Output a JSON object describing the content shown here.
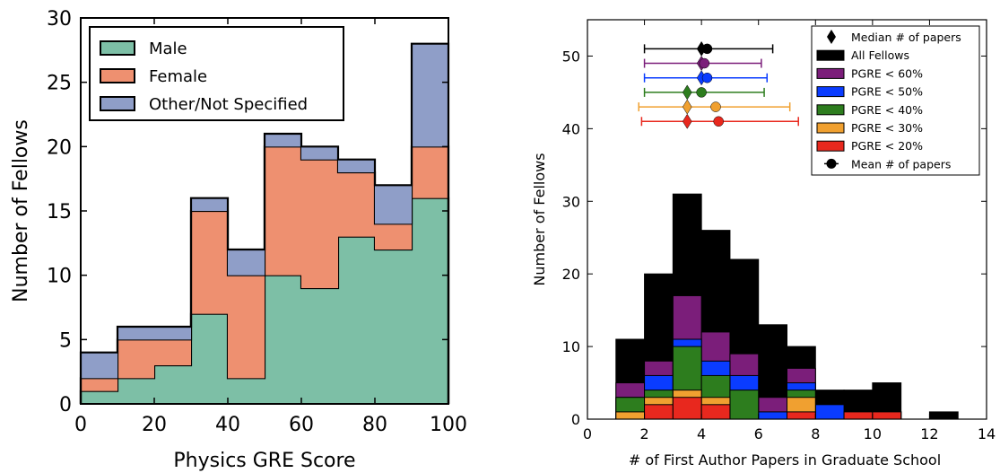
{
  "chart_data": [
    {
      "type": "histogram-stacked",
      "title": "",
      "xlabel": "Physics GRE Score",
      "ylabel": "Number of Fellows",
      "xlim": [
        0,
        100
      ],
      "ylim": [
        0,
        30
      ],
      "xticks": [
        0,
        20,
        40,
        60,
        80,
        100
      ],
      "yticks": [
        0,
        5,
        10,
        15,
        20,
        25,
        30
      ],
      "bin_edges": [
        0,
        10,
        20,
        30,
        40,
        50,
        60,
        70,
        80,
        90,
        100
      ],
      "legend_position": "top-left",
      "series": [
        {
          "name": "Male",
          "color": "#7dbfa6",
          "values": [
            1,
            2,
            3,
            7,
            2,
            10,
            9,
            13,
            12,
            16
          ]
        },
        {
          "name": "Female",
          "color": "#ee9070",
          "values": [
            1,
            3,
            2,
            8,
            8,
            10,
            10,
            5,
            2,
            4
          ]
        },
        {
          "name": "Other/Not Specified",
          "color": "#8f9ec8",
          "values": [
            2,
            1,
            1,
            1,
            2,
            1,
            1,
            1,
            3,
            8
          ]
        }
      ]
    },
    {
      "type": "histogram-overlay-errorbar",
      "title": "",
      "xlabel": "# of First Author Papers in Graduate School",
      "ylabel": "Number of Fellows",
      "xlim": [
        0,
        14
      ],
      "ylim": [
        0,
        55
      ],
      "xticks": [
        0,
        2,
        4,
        6,
        8,
        10,
        12,
        14
      ],
      "yticks": [
        0,
        10,
        20,
        30,
        40,
        50
      ],
      "bin_edges": [
        1,
        2,
        3,
        4,
        5,
        6,
        7,
        8,
        9,
        10,
        11,
        12,
        13
      ],
      "legend_position": "top-right",
      "legend_extra": [
        "Median # of papers",
        "Mean # of papers"
      ],
      "series": [
        {
          "name": "All Fellows",
          "color": "#000000",
          "values": [
            11,
            20,
            31,
            26,
            22,
            13,
            10,
            4,
            4,
            5,
            0,
            1
          ],
          "median": 4.0,
          "mean": 4.2,
          "err_low": 2.0,
          "err_high": 6.5,
          "y": 51
        },
        {
          "name": "PGRE < 60%",
          "color": "#7b1e7a",
          "values": [
            5,
            8,
            17,
            12,
            9,
            3,
            7,
            2,
            1,
            1,
            0,
            0
          ],
          "median": 4.0,
          "mean": 4.1,
          "err_low": 2.0,
          "err_high": 6.1,
          "y": 49
        },
        {
          "name": "PGRE < 50%",
          "color": "#0a3cff",
          "values": [
            3,
            6,
            11,
            8,
            6,
            1,
            5,
            2,
            1,
            1,
            0,
            0
          ],
          "median": 4.0,
          "mean": 4.2,
          "err_low": 2.0,
          "err_high": 6.3,
          "y": 47
        },
        {
          "name": "PGRE < 40%",
          "color": "#2d7d1e",
          "values": [
            3,
            4,
            10,
            6,
            4,
            0,
            4,
            0,
            1,
            1,
            0,
            0
          ],
          "median": 3.5,
          "mean": 4.0,
          "err_low": 2.0,
          "err_high": 6.2,
          "y": 45
        },
        {
          "name": "PGRE < 30%",
          "color": "#f0a030",
          "values": [
            1,
            3,
            4,
            3,
            0,
            0,
            3,
            0,
            1,
            1,
            0,
            0
          ],
          "median": 3.5,
          "mean": 4.5,
          "err_low": 1.8,
          "err_high": 7.1,
          "y": 43
        },
        {
          "name": "PGRE < 20%",
          "color": "#e8281e",
          "values": [
            0,
            2,
            3,
            2,
            0,
            0,
            1,
            0,
            1,
            1,
            0,
            0
          ],
          "median": 3.5,
          "mean": 4.6,
          "err_low": 1.9,
          "err_high": 7.4,
          "y": 41
        }
      ]
    }
  ]
}
